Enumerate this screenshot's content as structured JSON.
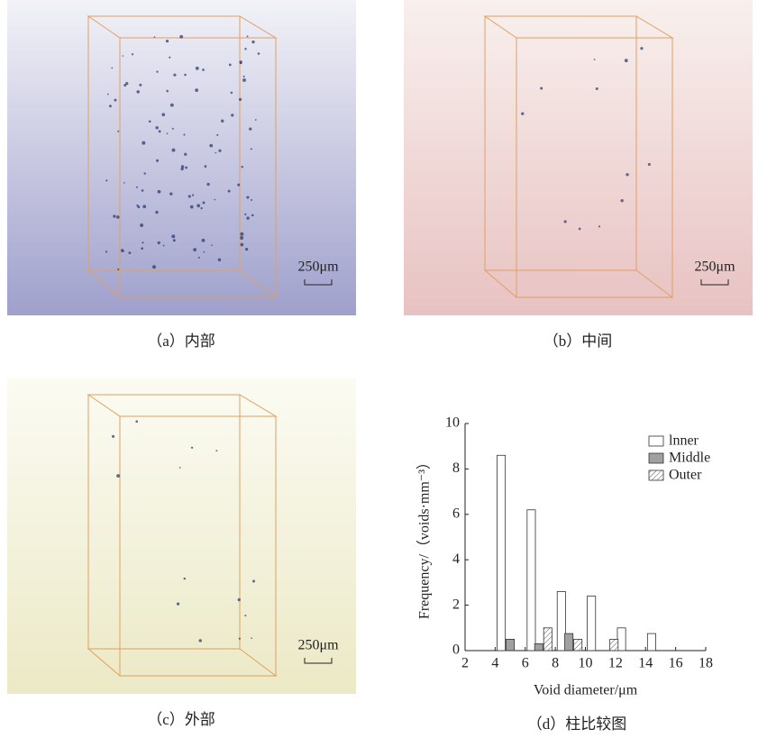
{
  "panels": [
    {
      "caption": "（a）内部",
      "scale_label": "250μm"
    },
    {
      "caption": "（b）中间",
      "scale_label": "250μm"
    },
    {
      "caption": "（c）外部",
      "scale_label": "250μm"
    }
  ],
  "chart_data": {
    "type": "bar",
    "caption": "（d）柱比较图",
    "x_label": "Void diameter/μm",
    "y_label": "Frequency/（voids·mm⁻³）",
    "xlim": [
      2,
      18
    ],
    "xticks": [
      2,
      4,
      6,
      8,
      10,
      12,
      14,
      16,
      18
    ],
    "ylim": [
      0,
      10
    ],
    "yticks": [
      0,
      2,
      4,
      6,
      8,
      10
    ],
    "legend": "upper right",
    "series": [
      {
        "name": "lnner",
        "color": "#ffffff",
        "x": [
          4.4,
          6.4,
          8.4,
          10.4,
          12.4,
          14.4
        ],
        "values": [
          8.6,
          6.2,
          2.6,
          2.4,
          1.0,
          0.75
        ]
      },
      {
        "name": "Middle",
        "color": "#a0a0a0",
        "x": [
          5.0,
          6.9,
          8.9
        ],
        "values": [
          0.5,
          0.3,
          0.75
        ]
      },
      {
        "name": "Outer",
        "color": "#ffffff",
        "hatch": true,
        "x": [
          7.5,
          9.5,
          11.9
        ],
        "values": [
          1.0,
          0.5,
          0.5
        ]
      }
    ]
  }
}
